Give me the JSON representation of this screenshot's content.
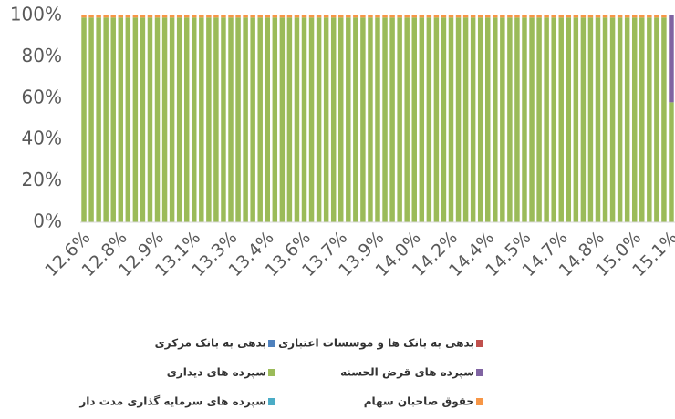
{
  "chart_data": {
    "type": "stacked_bar_100",
    "categories": [
      "12.6%",
      null,
      null,
      null,
      null,
      "12.8%",
      null,
      null,
      null,
      null,
      "12.9%",
      null,
      null,
      null,
      null,
      "13.1%",
      null,
      null,
      null,
      null,
      "13.3%",
      null,
      null,
      null,
      null,
      "13.4%",
      null,
      null,
      null,
      null,
      "13.6%",
      null,
      null,
      null,
      null,
      "13.7%",
      null,
      null,
      null,
      null,
      "13.9%",
      null,
      null,
      null,
      null,
      "14.0%",
      null,
      null,
      null,
      null,
      "14.2%",
      null,
      null,
      null,
      null,
      "14.4%",
      null,
      null,
      null,
      null,
      "14.5%",
      null,
      null,
      null,
      null,
      "14.7%",
      null,
      null,
      null,
      null,
      "14.8%",
      null,
      null,
      null,
      null,
      "15.0%",
      null,
      null,
      null,
      null,
      "15.1%"
    ],
    "series": [
      {
        "name": "بدهی به بانک مرکزی",
        "color": "#4f81bd",
        "values": [
          0,
          0,
          0,
          0,
          0,
          0,
          0,
          0,
          0,
          0,
          0,
          0,
          0,
          0,
          0,
          0,
          0,
          0,
          0,
          0,
          0,
          0,
          0,
          0,
          0,
          0,
          0,
          0,
          0,
          0,
          0,
          0,
          0,
          0,
          0,
          0,
          0,
          0,
          0,
          0,
          0,
          0,
          0,
          0,
          0,
          0,
          0,
          0,
          0,
          0,
          0,
          0,
          0,
          0,
          0,
          0,
          0,
          0,
          0,
          0,
          0,
          0,
          0,
          0,
          0,
          0,
          0,
          0,
          0,
          0,
          0,
          0,
          0,
          0,
          0,
          0,
          0,
          0,
          0,
          0,
          0
        ]
      },
      {
        "name": "بدهی به بانک ها و موسسات اعتباری",
        "color": "#c0504d",
        "values": [
          0,
          0,
          0,
          0,
          0,
          0,
          0,
          0,
          0,
          0,
          0,
          0,
          0,
          0,
          0,
          0,
          0,
          0,
          0,
          0,
          0,
          0,
          0,
          0,
          0,
          0,
          0,
          0,
          0,
          0,
          0,
          0,
          0,
          0,
          0,
          0,
          0,
          0,
          0,
          0,
          0,
          0,
          0,
          0,
          0,
          0,
          0,
          0,
          0,
          0,
          0,
          0,
          0,
          0,
          0,
          0,
          0,
          0,
          0,
          0,
          0,
          0,
          0,
          0,
          0,
          0,
          0,
          0,
          0,
          0,
          0,
          0,
          0,
          0,
          0,
          0,
          0,
          0,
          0,
          0,
          0
        ]
      },
      {
        "name": "سپرده های دیداری",
        "color": "#9bbb59",
        "values": [
          99,
          99,
          99,
          99,
          99,
          99,
          99,
          99,
          99,
          99,
          99,
          99,
          99,
          99,
          99,
          99,
          99,
          99,
          99,
          99,
          99,
          99,
          99,
          99,
          99,
          99,
          99,
          99,
          99,
          99,
          99,
          99,
          99,
          99,
          99,
          99,
          99,
          99,
          99,
          99,
          99,
          99,
          99,
          99,
          99,
          99,
          99,
          99,
          99,
          99,
          99,
          99,
          99,
          99,
          99,
          99,
          99,
          99,
          99,
          99,
          99,
          99,
          99,
          99,
          99,
          99,
          99,
          99,
          99,
          99,
          99,
          99,
          99,
          99,
          99,
          99,
          99,
          99,
          99,
          99,
          58
        ]
      },
      {
        "name": "سپرده های قرض الحسنه",
        "color": "#8064a2",
        "values": [
          0,
          0,
          0,
          0,
          0,
          0,
          0,
          0,
          0,
          0,
          0,
          0,
          0,
          0,
          0,
          0,
          0,
          0,
          0,
          0,
          0,
          0,
          0,
          0,
          0,
          0,
          0,
          0,
          0,
          0,
          0,
          0,
          0,
          0,
          0,
          0,
          0,
          0,
          0,
          0,
          0,
          0,
          0,
          0,
          0,
          0,
          0,
          0,
          0,
          0,
          0,
          0,
          0,
          0,
          0,
          0,
          0,
          0,
          0,
          0,
          0,
          0,
          0,
          0,
          0,
          0,
          0,
          0,
          0,
          0,
          0,
          0,
          0,
          0,
          0,
          0,
          0,
          0,
          0,
          0,
          42
        ]
      },
      {
        "name": "سپرده های سرمایه گذاری مدت دار",
        "color": "#4bacc6",
        "values": [
          0,
          0,
          0,
          0,
          0,
          0,
          0,
          0,
          0,
          0,
          0,
          0,
          0,
          0,
          0,
          0,
          0,
          0,
          0,
          0,
          0,
          0,
          0,
          0,
          0,
          0,
          0,
          0,
          0,
          0,
          0,
          0,
          0,
          0,
          0,
          0,
          0,
          0,
          0,
          0,
          0,
          0,
          0,
          0,
          0,
          0,
          0,
          0,
          0,
          0,
          0,
          0,
          0,
          0,
          0,
          0,
          0,
          0,
          0,
          0,
          0,
          0,
          0,
          0,
          0,
          0,
          0,
          0,
          0,
          0,
          0,
          0,
          0,
          0,
          0,
          0,
          0,
          0,
          0,
          0,
          0
        ]
      },
      {
        "name": "حقوق صاحبان سهام",
        "color": "#f79646",
        "values": [
          1,
          1,
          1,
          1,
          1,
          1,
          1,
          1,
          1,
          1,
          1,
          1,
          1,
          1,
          1,
          1,
          1,
          1,
          1,
          1,
          1,
          1,
          1,
          1,
          1,
          1,
          1,
          1,
          1,
          1,
          1,
          1,
          1,
          1,
          1,
          1,
          1,
          1,
          1,
          1,
          1,
          1,
          1,
          1,
          1,
          1,
          1,
          1,
          1,
          1,
          1,
          1,
          1,
          1,
          1,
          1,
          1,
          1,
          1,
          1,
          1,
          1,
          1,
          1,
          1,
          1,
          1,
          1,
          1,
          1,
          1,
          1,
          1,
          1,
          1,
          1,
          1,
          1,
          1,
          1,
          0
        ]
      }
    ],
    "ylim": [
      0,
      100
    ],
    "yticks": [
      {
        "value": 0,
        "label": "0%"
      },
      {
        "value": 20,
        "label": "20%"
      },
      {
        "value": 40,
        "label": "40%"
      },
      {
        "value": 60,
        "label": "60%"
      },
      {
        "value": 80,
        "label": "80%"
      },
      {
        "value": 100,
        "label": "100%"
      }
    ],
    "grid": false,
    "legend": "bottom"
  }
}
